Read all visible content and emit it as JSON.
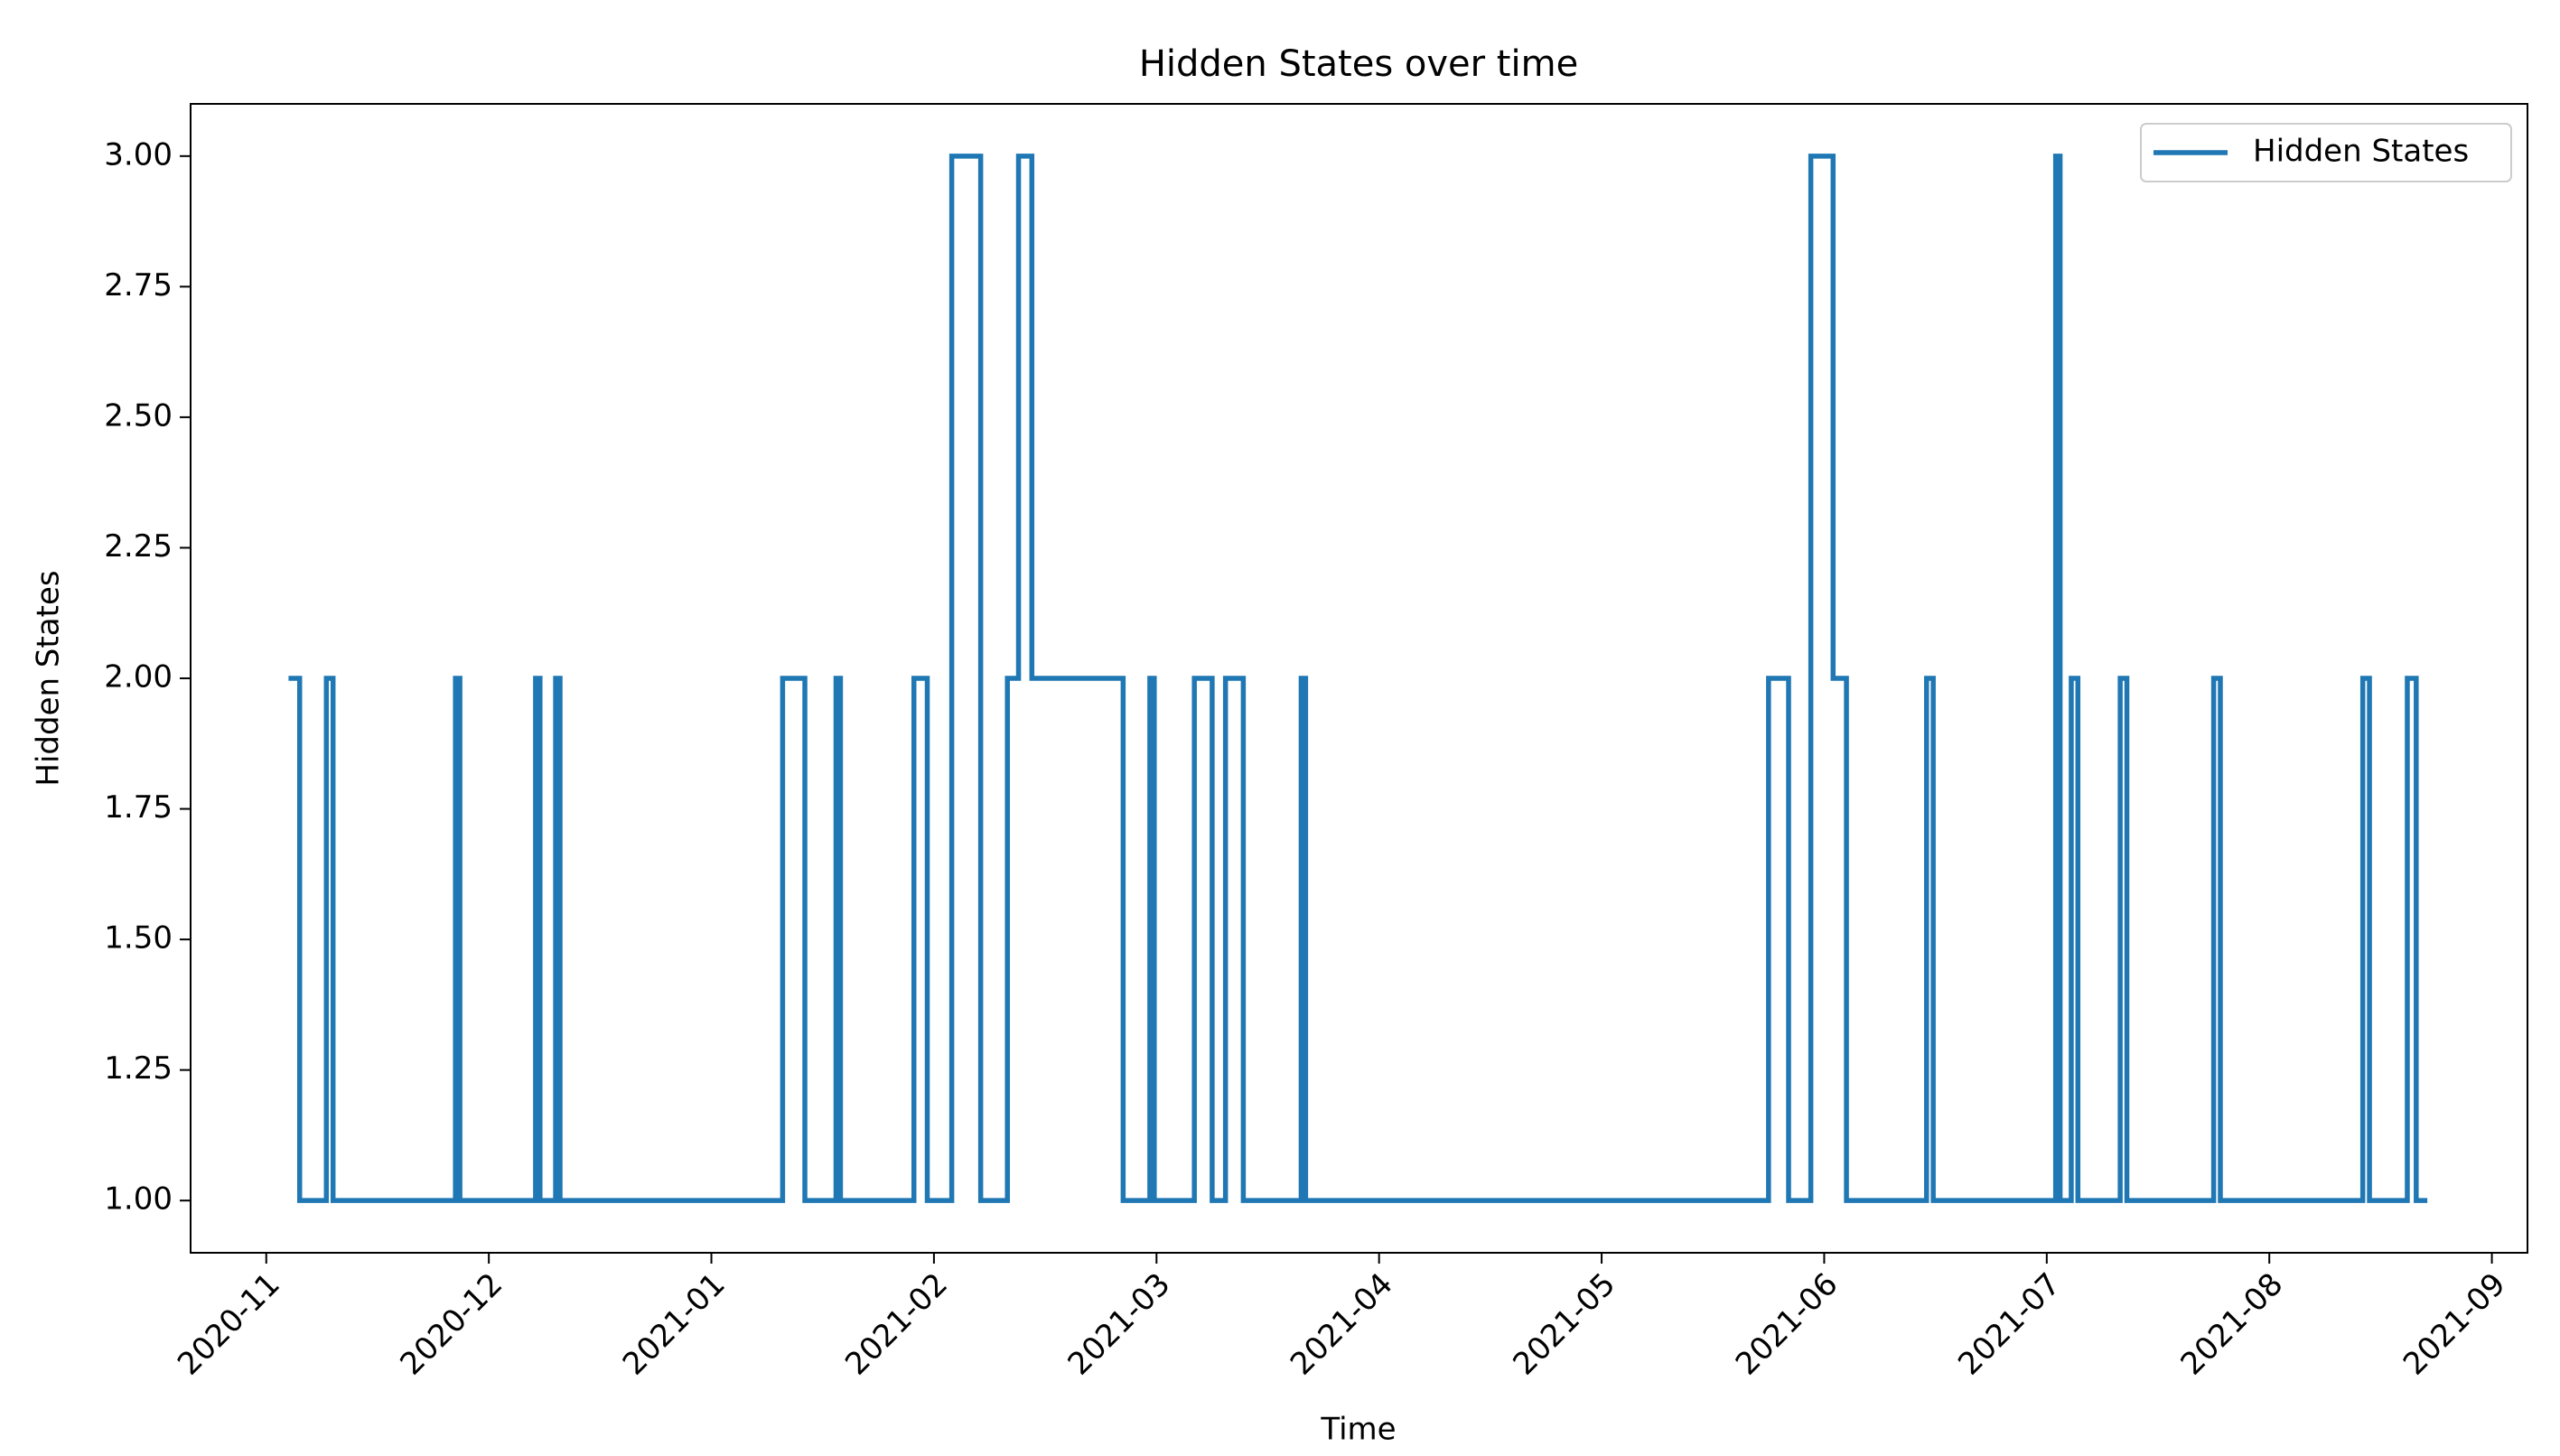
{
  "chart_data": {
    "type": "line",
    "title": "Hidden States over time",
    "xlabel": "Time",
    "ylabel": "Hidden States",
    "x": [
      0.1,
      0.15,
      0.15,
      0.27,
      0.27,
      0.3,
      0.3,
      0.85,
      0.85,
      0.87,
      0.87,
      1.21,
      1.21,
      1.23,
      1.23,
      1.3,
      1.3,
      1.32,
      1.32,
      2.32,
      2.32,
      2.42,
      2.42,
      2.56,
      2.56,
      2.58,
      2.58,
      2.91,
      2.91,
      2.97,
      2.97,
      3.08,
      3.08,
      3.21,
      3.21,
      3.33,
      3.33,
      3.38,
      3.38,
      3.44,
      3.44,
      3.85,
      3.85,
      3.97,
      3.97,
      3.99,
      3.99,
      4.17,
      4.17,
      4.25,
      4.25,
      4.31,
      4.31,
      4.39,
      4.39,
      4.65,
      4.65,
      4.67,
      4.67,
      6.75,
      6.75,
      6.84,
      6.84,
      6.94,
      6.94,
      7.04,
      7.04,
      7.1,
      7.1,
      7.46,
      7.46,
      7.49,
      7.49,
      8.04,
      8.04,
      8.06,
      8.06,
      8.11,
      8.11,
      8.14,
      8.14,
      8.33,
      8.33,
      8.36,
      8.36,
      8.75,
      8.75,
      8.78,
      8.78,
      9.42,
      9.42,
      9.45,
      9.45,
      9.62,
      9.62,
      9.66,
      9.66,
      9.71
    ],
    "series": [
      {
        "name": "Hidden States",
        "color": "#1f77b4",
        "values": [
          2,
          2,
          1,
          1,
          2,
          2,
          1,
          1,
          2,
          2,
          1,
          1,
          2,
          2,
          1,
          1,
          2,
          2,
          1,
          1,
          2,
          2,
          1,
          1,
          2,
          2,
          1,
          1,
          2,
          2,
          1,
          1,
          3,
          3,
          1,
          1,
          2,
          2,
          3,
          3,
          2,
          2,
          1,
          1,
          2,
          2,
          1,
          1,
          2,
          2,
          1,
          1,
          2,
          2,
          1,
          1,
          2,
          2,
          1,
          1,
          2,
          2,
          1,
          1,
          3,
          3,
          2,
          2,
          1,
          1,
          2,
          2,
          1,
          1,
          3,
          3,
          1,
          1,
          2,
          2,
          1,
          1,
          2,
          2,
          1,
          1,
          2,
          2,
          1,
          1,
          2,
          2,
          1,
          1,
          2,
          2,
          1,
          1
        ]
      }
    ],
    "xlim": [
      -0.34,
      10.16
    ],
    "xticks": [
      {
        "value": 0,
        "label": "2020-11"
      },
      {
        "value": 1,
        "label": "2020-12"
      },
      {
        "value": 2,
        "label": "2021-01"
      },
      {
        "value": 3,
        "label": "2021-02"
      },
      {
        "value": 4,
        "label": "2021-03"
      },
      {
        "value": 5,
        "label": "2021-04"
      },
      {
        "value": 6,
        "label": "2021-05"
      },
      {
        "value": 7,
        "label": "2021-06"
      },
      {
        "value": 8,
        "label": "2021-07"
      },
      {
        "value": 9,
        "label": "2021-08"
      },
      {
        "value": 10,
        "label": "2021-09"
      }
    ],
    "ylim": [
      0.9,
      3.1
    ],
    "yticks": [
      {
        "value": 1,
        "label": "1.00"
      },
      {
        "value": 1.25,
        "label": "1.25"
      },
      {
        "value": 1.5,
        "label": "1.50"
      },
      {
        "value": 1.75,
        "label": "1.75"
      },
      {
        "value": 2,
        "label": "2.00"
      },
      {
        "value": 2.25,
        "label": "2.25"
      },
      {
        "value": 2.5,
        "label": "2.50"
      },
      {
        "value": 2.75,
        "label": "2.75"
      },
      {
        "value": 3,
        "label": "3.00"
      }
    ],
    "grid": false,
    "legend": "upper right"
  }
}
